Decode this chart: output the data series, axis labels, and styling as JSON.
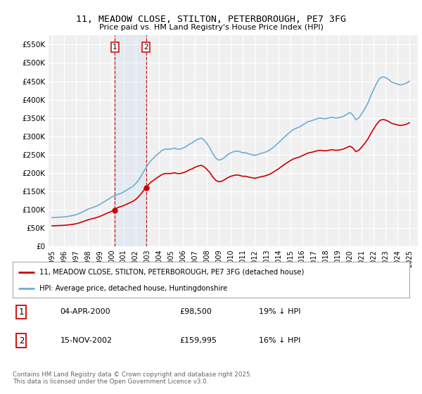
{
  "title": "11, MEADOW CLOSE, STILTON, PETERBOROUGH, PE7 3FG",
  "subtitle": "Price paid vs. HM Land Registry's House Price Index (HPI)",
  "ylim": [
    0,
    575000
  ],
  "ytick_vals": [
    0,
    50000,
    100000,
    150000,
    200000,
    250000,
    300000,
    350000,
    400000,
    450000,
    500000,
    550000
  ],
  "ytick_labels": [
    "£0",
    "£50K",
    "£100K",
    "£150K",
    "£200K",
    "£250K",
    "£300K",
    "£350K",
    "£400K",
    "£450K",
    "£500K",
    "£550K"
  ],
  "hpi_color": "#6baed6",
  "price_color": "#cc0000",
  "sale1_year": 2000.27,
  "sale1_price": 98500,
  "sale2_year": 2002.88,
  "sale2_price": 159995,
  "legend_line1": "11, MEADOW CLOSE, STILTON, PETERBOROUGH, PE7 3FG (detached house)",
  "legend_line2": "HPI: Average price, detached house, Huntingdonshire",
  "table_row1": [
    "1",
    "04-APR-2000",
    "£98,500",
    "19% ↓ HPI"
  ],
  "table_row2": [
    "2",
    "15-NOV-2002",
    "£159,995",
    "16% ↓ HPI"
  ],
  "footnote": "Contains HM Land Registry data © Crown copyright and database right 2025.\nThis data is licensed under the Open Government Licence v3.0.",
  "background_color": "#ffffff",
  "hpi_years": [
    1995.0,
    1995.25,
    1995.5,
    1995.75,
    1996.0,
    1996.25,
    1996.5,
    1996.75,
    1997.0,
    1997.25,
    1997.5,
    1997.75,
    1998.0,
    1998.25,
    1998.5,
    1998.75,
    1999.0,
    1999.25,
    1999.5,
    1999.75,
    2000.0,
    2000.25,
    2000.5,
    2000.75,
    2001.0,
    2001.25,
    2001.5,
    2001.75,
    2002.0,
    2002.25,
    2002.5,
    2002.75,
    2003.0,
    2003.25,
    2003.5,
    2003.75,
    2004.0,
    2004.25,
    2004.5,
    2004.75,
    2005.0,
    2005.25,
    2005.5,
    2005.75,
    2006.0,
    2006.25,
    2006.5,
    2006.75,
    2007.0,
    2007.25,
    2007.5,
    2007.75,
    2008.0,
    2008.25,
    2008.5,
    2008.75,
    2009.0,
    2009.25,
    2009.5,
    2009.75,
    2010.0,
    2010.25,
    2010.5,
    2010.75,
    2011.0,
    2011.25,
    2011.5,
    2011.75,
    2012.0,
    2012.25,
    2012.5,
    2012.75,
    2013.0,
    2013.25,
    2013.5,
    2013.75,
    2014.0,
    2014.25,
    2014.5,
    2014.75,
    2015.0,
    2015.25,
    2015.5,
    2015.75,
    2016.0,
    2016.25,
    2016.5,
    2016.75,
    2017.0,
    2017.25,
    2017.5,
    2017.75,
    2018.0,
    2018.25,
    2018.5,
    2018.75,
    2019.0,
    2019.25,
    2019.5,
    2019.75,
    2020.0,
    2020.25,
    2020.5,
    2020.75,
    2021.0,
    2021.25,
    2021.5,
    2021.75,
    2022.0,
    2022.25,
    2022.5,
    2022.75,
    2023.0,
    2023.25,
    2023.5,
    2023.75,
    2024.0,
    2024.25,
    2024.5,
    2024.75,
    2025.0
  ],
  "hpi_vals": [
    78000,
    78500,
    79000,
    79500,
    80000,
    81000,
    82500,
    84000,
    86000,
    89000,
    93000,
    97000,
    101000,
    104000,
    107000,
    110000,
    114000,
    119000,
    124000,
    129000,
    134000,
    138000,
    141000,
    144000,
    148000,
    153000,
    158000,
    163000,
    170000,
    180000,
    193000,
    207000,
    220000,
    232000,
    240000,
    248000,
    255000,
    262000,
    265000,
    265000,
    265000,
    268000,
    265000,
    265000,
    268000,
    272000,
    278000,
    282000,
    288000,
    292000,
    295000,
    290000,
    280000,
    268000,
    252000,
    240000,
    235000,
    237000,
    243000,
    250000,
    255000,
    258000,
    260000,
    258000,
    255000,
    255000,
    252000,
    250000,
    248000,
    250000,
    253000,
    255000,
    258000,
    262000,
    268000,
    275000,
    282000,
    290000,
    298000,
    305000,
    312000,
    318000,
    322000,
    325000,
    330000,
    335000,
    340000,
    342000,
    345000,
    348000,
    350000,
    348000,
    348000,
    350000,
    352000,
    350000,
    350000,
    352000,
    355000,
    360000,
    365000,
    358000,
    345000,
    350000,
    362000,
    375000,
    390000,
    410000,
    428000,
    445000,
    458000,
    462000,
    460000,
    455000,
    448000,
    445000,
    442000,
    440000,
    442000,
    445000,
    450000
  ]
}
